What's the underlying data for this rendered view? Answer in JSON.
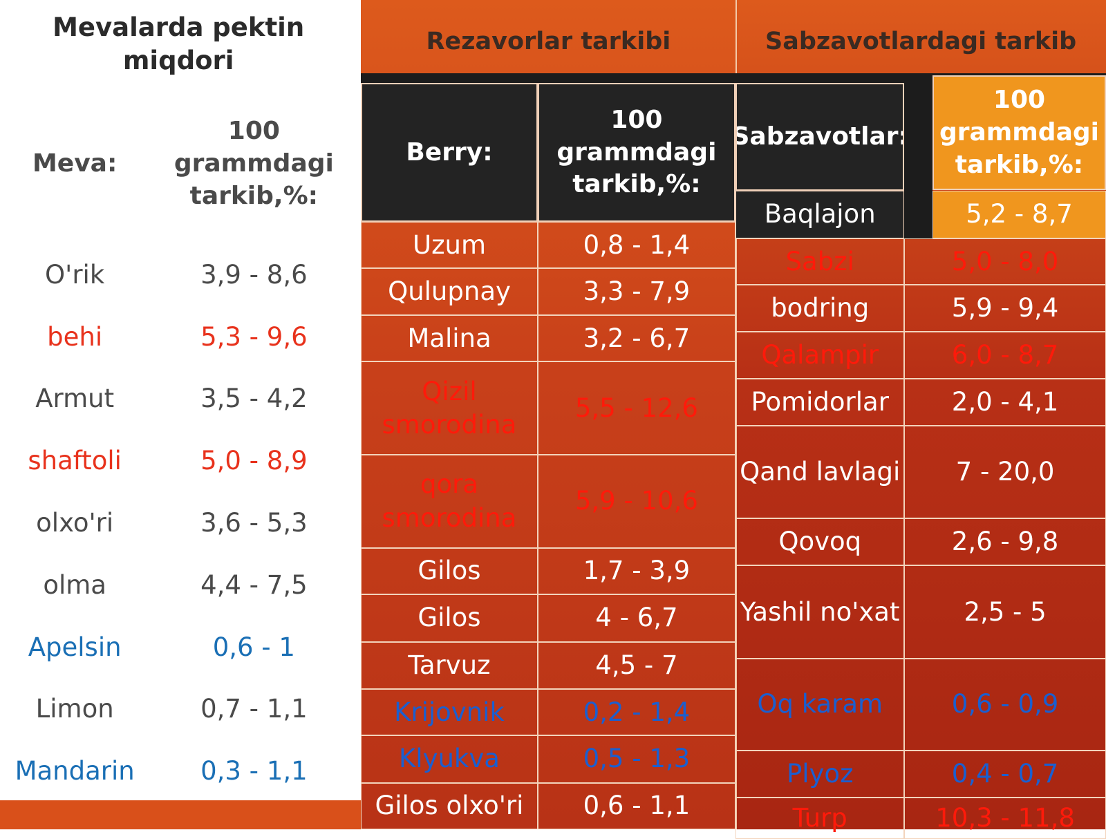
{
  "left": {
    "title": "Mevalarda pektin miqdori",
    "header": [
      "Meva:",
      "100 grammdagi tarkib,%:"
    ],
    "rows": [
      {
        "cells": [
          "O'rik",
          "3,9 - 8,6"
        ]
      },
      {
        "cells": [
          "behi",
          "5,3 - 9,6"
        ],
        "color": "red"
      },
      {
        "cells": [
          "Armut",
          "3,5 - 4,2"
        ]
      },
      {
        "cells": [
          "shaftoli",
          "5,0 - 8,9"
        ],
        "color": "red"
      },
      {
        "cells": [
          "olxo'ri",
          "3,6 - 5,3"
        ]
      },
      {
        "cells": [
          "olma",
          "4,4 - 7,5"
        ]
      },
      {
        "cells": [
          "Apelsin",
          "0,6 - 1"
        ],
        "color": "blue"
      },
      {
        "cells": [
          "Limon",
          "0,7 - 1,1"
        ]
      },
      {
        "cells": [
          "Mandarin",
          "0,3 - 1,1"
        ],
        "color": "blue"
      }
    ]
  },
  "middle": {
    "title": "Rezavorlar tarkibi",
    "header": [
      "Berry:",
      "100 grammdagi tarkib,%:"
    ],
    "rows": [
      {
        "cells": [
          "Uzum",
          "0,8 - 1,4"
        ]
      },
      {
        "cells": [
          "Qulupnay",
          "3,3 - 7,9"
        ]
      },
      {
        "cells": [
          "Malina",
          "3,2 - 6,7"
        ]
      },
      {
        "cells": [
          "Qizil smorodina",
          "5,5 - 12,6"
        ],
        "color": "red"
      },
      {
        "cells": [
          "qora smorodina",
          "5,9 - 10,6"
        ],
        "color": "red"
      },
      {
        "cells": [
          "Gilos",
          "1,7 - 3,9"
        ]
      },
      {
        "cells": [
          "Gilos",
          "4 - 6,7"
        ]
      },
      {
        "cells": [
          "Tarvuz",
          "4,5 - 7"
        ]
      },
      {
        "cells": [
          "Krijovnik",
          "0,2 - 1,4"
        ],
        "color": "blue"
      },
      {
        "cells": [
          "Klyukva",
          "0,5 - 1,3"
        ],
        "color": "blue"
      },
      {
        "cells": [
          "Gilos olxo'ri",
          "0,6 - 1,1"
        ]
      }
    ]
  },
  "right": {
    "title": "Sabzavotlardagi tarkib",
    "header": [
      "Sabzavotlar:",
      "100 grammdagi tarkib,%:"
    ],
    "rows": [
      {
        "cells": [
          "Baqlajon",
          "5,2 - 8,7"
        ]
      },
      {
        "cells": [
          "Sabzi",
          "5,0 - 8,0"
        ],
        "color": "red"
      },
      {
        "cells": [
          "bodring",
          "5,9 - 9,4"
        ]
      },
      {
        "cells": [
          "Qalampir",
          "6,0 - 8,7"
        ],
        "color": "red"
      },
      {
        "cells": [
          "Pomidorlar",
          "2,0 - 4,1"
        ]
      },
      {
        "cells": [
          "Qand lavlagi",
          "7 - 20,0"
        ]
      },
      {
        "cells": [
          "Qovoq",
          "2,6 - 9,8"
        ]
      },
      {
        "cells": [
          "Yashil no'xat",
          "2,5 - 5"
        ]
      },
      {
        "cells": [
          "Oq karam",
          "0,6 - 0,9"
        ],
        "color": "blue"
      },
      {
        "cells": [
          "Plyoz",
          "0,4 - 0,7"
        ],
        "color": "blue"
      },
      {
        "cells": [
          "Turp",
          "10,3 - 11,8"
        ],
        "color": "red"
      }
    ]
  }
}
